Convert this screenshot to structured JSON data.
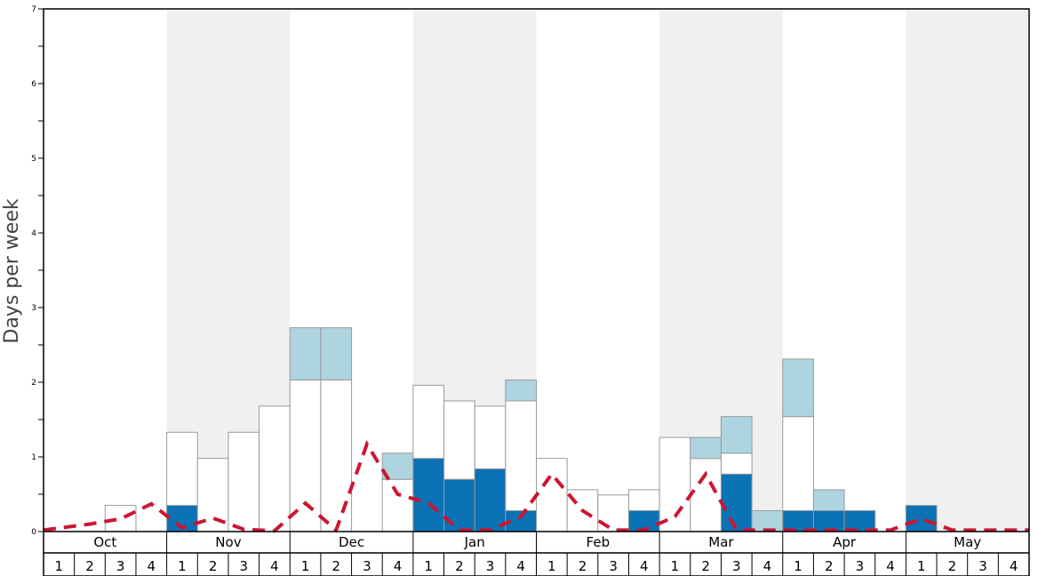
{
  "chart_data": {
    "type": "bar",
    "ylabel": "Days per week",
    "ylim": [
      0,
      7
    ],
    "y_ticks": [
      "0",
      "1",
      "2",
      "3",
      "4",
      "5",
      "6",
      "7"
    ],
    "months": [
      "Oct",
      "Nov",
      "Dec",
      "Jan",
      "Feb",
      "Mar",
      "Apr",
      "May"
    ],
    "week_labels": [
      "1",
      "2",
      "3",
      "4"
    ],
    "shaded_months": [
      "Nov",
      "Jan",
      "Mar",
      "May"
    ],
    "stack_order": [
      "dark",
      "white",
      "light"
    ],
    "series": [
      {
        "key": "dark",
        "color": "#0a72b5",
        "values": [
          0,
          0,
          0,
          0,
          0.35,
          0,
          0,
          0,
          0,
          0,
          0,
          0,
          0.98,
          0.7,
          0.84,
          0.28,
          0,
          0,
          0,
          0.28,
          0,
          0,
          0.77,
          0,
          0.28,
          0.28,
          0.28,
          0,
          0.35,
          0,
          0,
          0
        ]
      },
      {
        "key": "white",
        "color": "#ffffff",
        "values": [
          0,
          0,
          0.35,
          0,
          0.98,
          0.98,
          1.33,
          1.68,
          2.03,
          2.03,
          0,
          0.7,
          0.98,
          1.05,
          0.84,
          1.47,
          0.98,
          0.56,
          0.49,
          0.28,
          1.26,
          0.98,
          0.28,
          0,
          1.26,
          0,
          0,
          0,
          0,
          0,
          0,
          0
        ]
      },
      {
        "key": "light",
        "color": "#aed4e0",
        "values": [
          0,
          0,
          0,
          0,
          0,
          0,
          0,
          0,
          0.7,
          0.7,
          0,
          0.35,
          0,
          0,
          0,
          0.28,
          0,
          0,
          0,
          0,
          0,
          0.28,
          0.49,
          0.28,
          0.77,
          0.28,
          0,
          0,
          0,
          0,
          0,
          0
        ]
      },
      {
        "key": "dashed",
        "color": "#cc1530",
        "style": "dashed-line",
        "values": [
          0.02,
          0.1,
          0.17,
          0.37,
          0.05,
          0.18,
          0.03,
          0.01,
          0.38,
          0.02,
          1.17,
          0.5,
          0.38,
          0.02,
          0.02,
          0.2,
          0.77,
          0.28,
          0.02,
          0.02,
          0.2,
          0.77,
          0.02,
          0.02,
          0.02,
          0.02,
          0.02,
          0.02,
          0.17,
          0.02,
          0.02,
          0.02
        ]
      }
    ]
  }
}
